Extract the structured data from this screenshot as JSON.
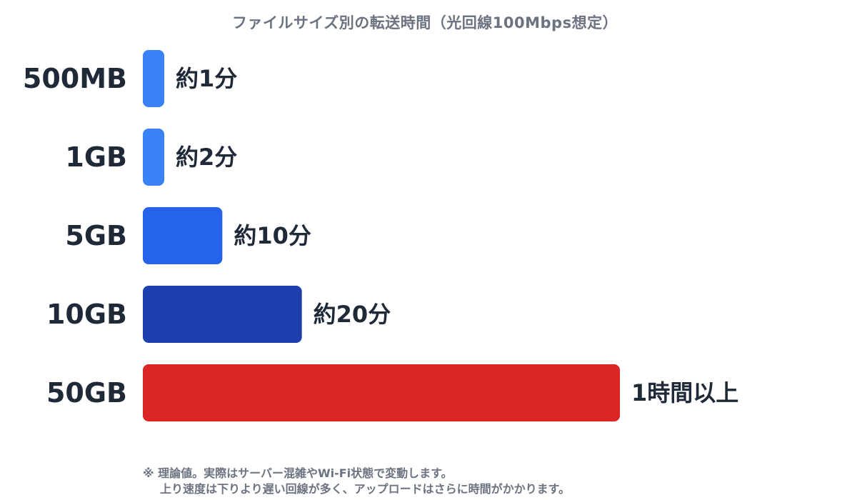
{
  "chart_data": {
    "type": "bar",
    "orientation": "horizontal",
    "title": "ファイルサイズ別の転送時間（光回線100Mbps想定）",
    "categories": [
      "500MB",
      "1GB",
      "5GB",
      "10GB",
      "50GB"
    ],
    "values": [
      1,
      2,
      10,
      20,
      60
    ],
    "value_unit": "分",
    "data_labels": [
      "約1分",
      "約2分",
      "約10分",
      "約20分",
      "1時間以上"
    ],
    "colors": [
      "#3b82f6",
      "#3b82f6",
      "#2563eb",
      "#1e40af",
      "#dc2626"
    ],
    "xlim": [
      0,
      60
    ],
    "grid": false,
    "legend": "none"
  },
  "note": {
    "line1": "※ 理論値。実際はサーバー混雑やWi-Fi状態で変動します。",
    "line2": "上り速度は下りより遅い回線が多く、アップロードはさらに時間がかかります。"
  }
}
